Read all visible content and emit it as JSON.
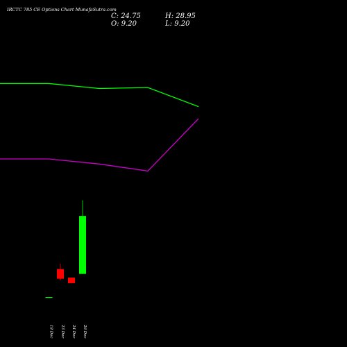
{
  "header": {
    "title": "IRCTC 785 CE Options Chart MunafaSutra.com",
    "close": "C: 24.75",
    "open": "O: 9.20",
    "high": "H: 28.95",
    "low": "L: 9.20"
  },
  "chart_data": {
    "type": "candlestick",
    "title": "IRCTC 785 CE Options Chart MunafaSutra.com",
    "categories": [
      "18 Dec",
      "23 Dec",
      "24 Dec",
      "26 Dec"
    ],
    "candles": [
      {
        "date": "18 Dec",
        "open": 3.0,
        "high": 3.0,
        "low": 2.9,
        "close": 2.9,
        "color": "#00ff00"
      },
      {
        "date": "23 Dec",
        "open": 10.5,
        "high": 11.9,
        "low": 7.5,
        "close": 7.9,
        "color": "#ff0000"
      },
      {
        "date": "24 Dec",
        "open": 8.2,
        "high": 8.2,
        "low": 6.7,
        "close": 6.7,
        "color": "#ff0000"
      },
      {
        "date": "26 Dec",
        "open": 9.2,
        "high": 28.95,
        "low": 9.2,
        "close": 24.75,
        "color": "#00ff00"
      }
    ],
    "series": [
      {
        "color": "#00ff00",
        "x": [
          0,
          1,
          2,
          3,
          4
        ],
        "values": [
          0.75,
          0.75,
          0.7,
          0.71,
          0.52
        ]
      },
      {
        "color": "#cc00cc",
        "x": [
          0,
          1,
          2,
          3,
          4
        ],
        "values": [
          0.0,
          0.0,
          -0.05,
          -0.12,
          0.4
        ]
      }
    ],
    "ylim": [
      2,
      30
    ],
    "grid": false
  }
}
